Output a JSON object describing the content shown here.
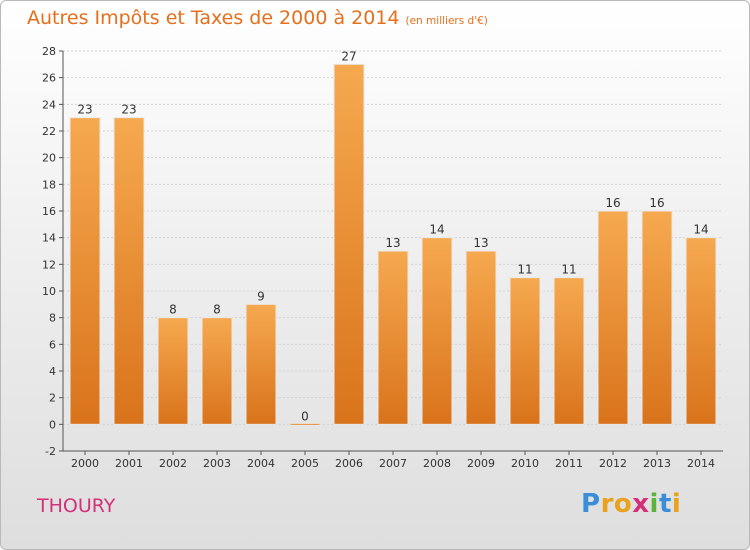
{
  "header": {
    "title": "Autres Impôts et Taxes de 2000 à 2014",
    "subtitle": "(en milliers d'€)"
  },
  "footer": {
    "place": "THOURY",
    "logo_text": "Proxiti",
    "logo_letters": [
      {
        "ch": "P",
        "color": "#3a8ed8"
      },
      {
        "ch": "r",
        "color": "#e9a21d"
      },
      {
        "ch": "o",
        "color": "#e9a21d"
      },
      {
        "ch": "x",
        "color": "#d4307a"
      },
      {
        "ch": "i",
        "color": "#5bb33b"
      },
      {
        "ch": "t",
        "color": "#3a8ed8"
      },
      {
        "ch": "i",
        "color": "#e9a21d"
      }
    ]
  },
  "colors": {
    "title": "#e56f1c",
    "place": "#d4307a",
    "bar_light": "#f6a94f",
    "bar_dark": "#d9731b"
  },
  "chart_data": {
    "type": "bar",
    "title": "Autres Impôts et Taxes de 2000 à 2014",
    "subtitle": "(en milliers d'€)",
    "categories": [
      "2000",
      "2001",
      "2002",
      "2003",
      "2004",
      "2005",
      "2006",
      "2007",
      "2008",
      "2009",
      "2010",
      "2011",
      "2012",
      "2013",
      "2014"
    ],
    "values": [
      23,
      23,
      8,
      8,
      9,
      0,
      27,
      13,
      14,
      13,
      11,
      11,
      16,
      16,
      14
    ],
    "ylim": [
      -2,
      28
    ],
    "yticks": [
      -2,
      0,
      2,
      4,
      6,
      8,
      10,
      12,
      14,
      16,
      18,
      20,
      22,
      24,
      26,
      28
    ],
    "grid": true,
    "xlabel": "",
    "ylabel": ""
  }
}
